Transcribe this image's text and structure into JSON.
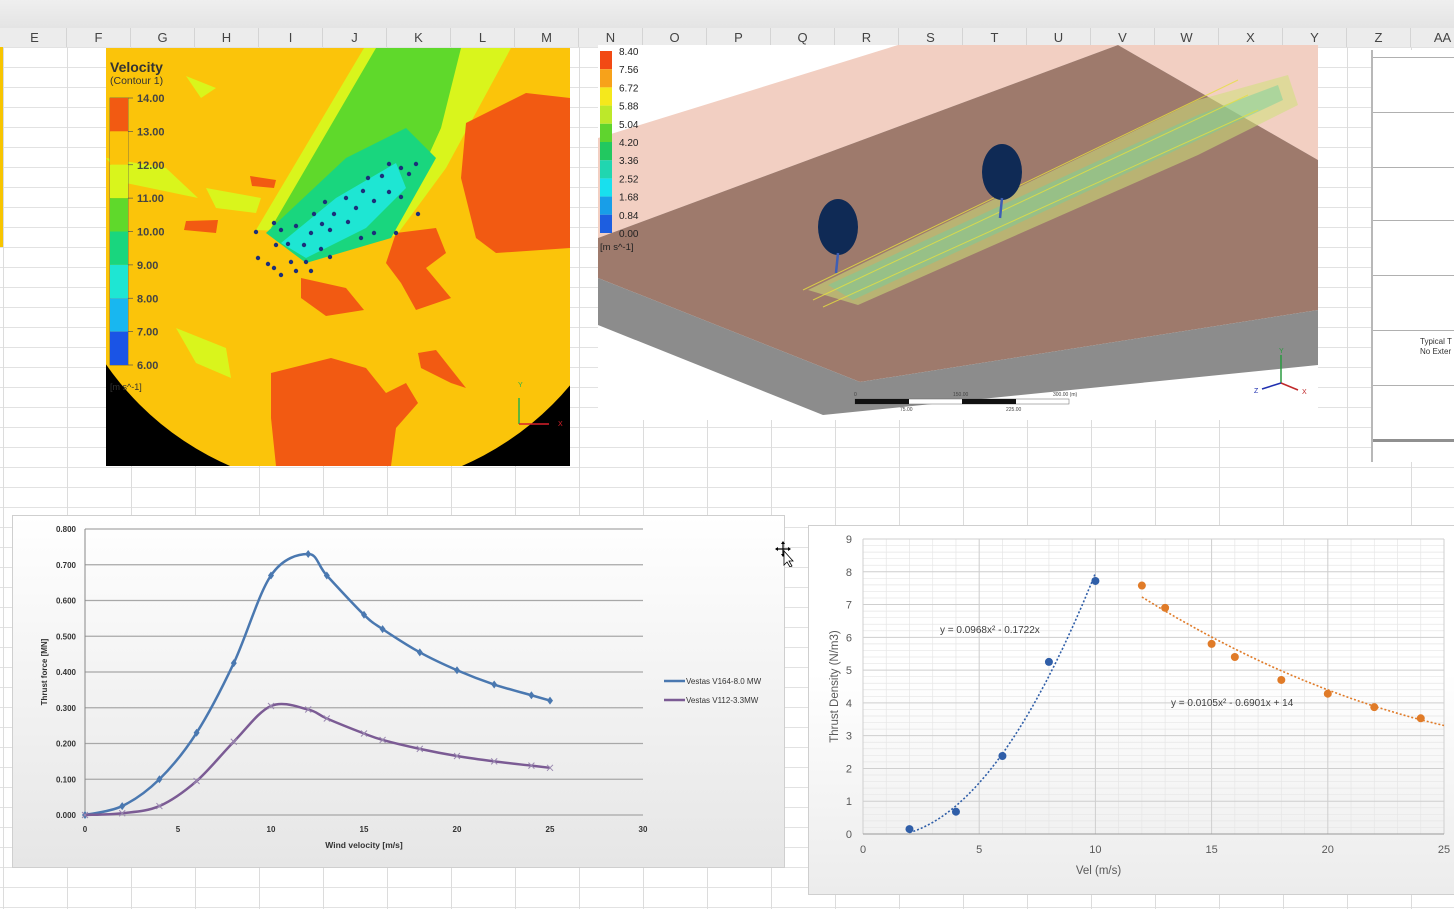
{
  "spreadsheet": {
    "columns": [
      "E",
      "F",
      "G",
      "H",
      "I",
      "J",
      "K",
      "L",
      "M",
      "N",
      "O",
      "P",
      "Q",
      "R",
      "S",
      "T",
      "U",
      "V",
      "W",
      "X",
      "Y",
      "Z",
      "AA"
    ],
    "side_table": {
      "line1": "Typical T",
      "line2": "No Exter"
    }
  },
  "contour_image": {
    "title": "Velocity",
    "subtitle": "(Contour  1)",
    "legend_ticks": [
      "14.00",
      "13.00",
      "12.00",
      "11.00",
      "10.00",
      "9.00",
      "8.00",
      "7.00",
      "6.00"
    ],
    "legend_colors": [
      "#f25a12",
      "#fbc40a",
      "#d9f51c",
      "#5fd92b",
      "#19d67e",
      "#1ee6d3",
      "#18b7f0",
      "#1a54e6"
    ],
    "unit": "[m  s^-1]",
    "axis_labels": {
      "y": "Y",
      "x": "X"
    }
  },
  "view3d_image": {
    "legend_ticks": [
      "8.40",
      "7.56",
      "6.72",
      "5.88",
      "5.04",
      "4.20",
      "3.36",
      "2.52",
      "1.68",
      "0.84",
      "0.00"
    ],
    "legend_colors": [
      "#f24a14",
      "#f7a21a",
      "#f5e81c",
      "#bde82a",
      "#5fd42e",
      "#22c860",
      "#20d6b0",
      "#18e0ee",
      "#189ee8",
      "#1d5ee0"
    ],
    "unit": "[m s^-1]",
    "scale_bar": {
      "start": "0",
      "mid_top": "150.00",
      "end": "300.00  (m)",
      "q1": "75.00",
      "q3": "225.00"
    },
    "axis_labels": {
      "x": "X",
      "y": "Y",
      "z": "Z"
    }
  },
  "chart_data": [
    {
      "type": "line",
      "title": "",
      "xlabel": "Wind velocity [m/s]",
      "ylabel": "Thrust force [MN]",
      "xlim": [
        0,
        30
      ],
      "ylim": [
        0,
        0.8
      ],
      "x_ticks": [
        "0",
        "5",
        "10",
        "15",
        "20",
        "25",
        "30"
      ],
      "y_ticks": [
        "0.000",
        "0.100",
        "0.200",
        "0.300",
        "0.400",
        "0.500",
        "0.600",
        "0.700",
        "0.800"
      ],
      "grid": "horizontal",
      "legend": "right",
      "series": [
        {
          "name": "Vestas V164-8.0 MW",
          "color": "#4a78b0",
          "marker": "diamond",
          "x": [
            0,
            2,
            4,
            6,
            8,
            10,
            12,
            13,
            15,
            16,
            18,
            20,
            22,
            24,
            25
          ],
          "y": [
            0,
            0.025,
            0.1,
            0.23,
            0.425,
            0.67,
            0.73,
            0.67,
            0.56,
            0.52,
            0.455,
            0.405,
            0.365,
            0.335,
            0.32
          ]
        },
        {
          "name": "Vestas V112-3.3MW",
          "color": "#7b5b94",
          "marker": "x",
          "x": [
            0,
            2,
            4,
            6,
            8,
            10,
            12,
            13,
            15,
            16,
            18,
            20,
            22,
            24,
            25
          ],
          "y": [
            0,
            0.005,
            0.025,
            0.095,
            0.205,
            0.305,
            0.295,
            0.27,
            0.228,
            0.21,
            0.185,
            0.165,
            0.15,
            0.138,
            0.132
          ]
        }
      ]
    },
    {
      "type": "scatter",
      "title": "",
      "xlabel": "Vel (m/s)",
      "ylabel": "Thrust Density (N/m3)",
      "xlim": [
        0,
        25
      ],
      "ylim": [
        0,
        9
      ],
      "x_ticks": [
        "0",
        "5",
        "10",
        "15",
        "20",
        "25"
      ],
      "y_ticks": [
        "0",
        "1",
        "2",
        "3",
        "4",
        "5",
        "6",
        "7",
        "8",
        "9"
      ],
      "grid": "major+minor",
      "series": [
        {
          "color": "#2f5ea8",
          "x": [
            2,
            4,
            6,
            8,
            10
          ],
          "y": [
            0.15,
            0.68,
            2.38,
            5.25,
            7.72
          ],
          "trendline": {
            "equation": "y = 0.0968x² - 0.1722x",
            "coefficients": [
              0.0968,
              -0.1722,
              0
            ],
            "x_range": [
              2,
              10
            ]
          }
        },
        {
          "color": "#e07b28",
          "x": [
            12,
            13,
            15,
            16,
            18,
            20,
            22,
            24
          ],
          "y": [
            7.58,
            6.9,
            5.8,
            5.4,
            4.7,
            4.28,
            3.87,
            3.53
          ],
          "trendline": {
            "equation": "y = 0.0105x² - 0.6901x + 14",
            "coefficients": [
              0.0105,
              -0.6901,
              14
            ],
            "x_range": [
              12,
              25
            ]
          }
        }
      ]
    }
  ]
}
